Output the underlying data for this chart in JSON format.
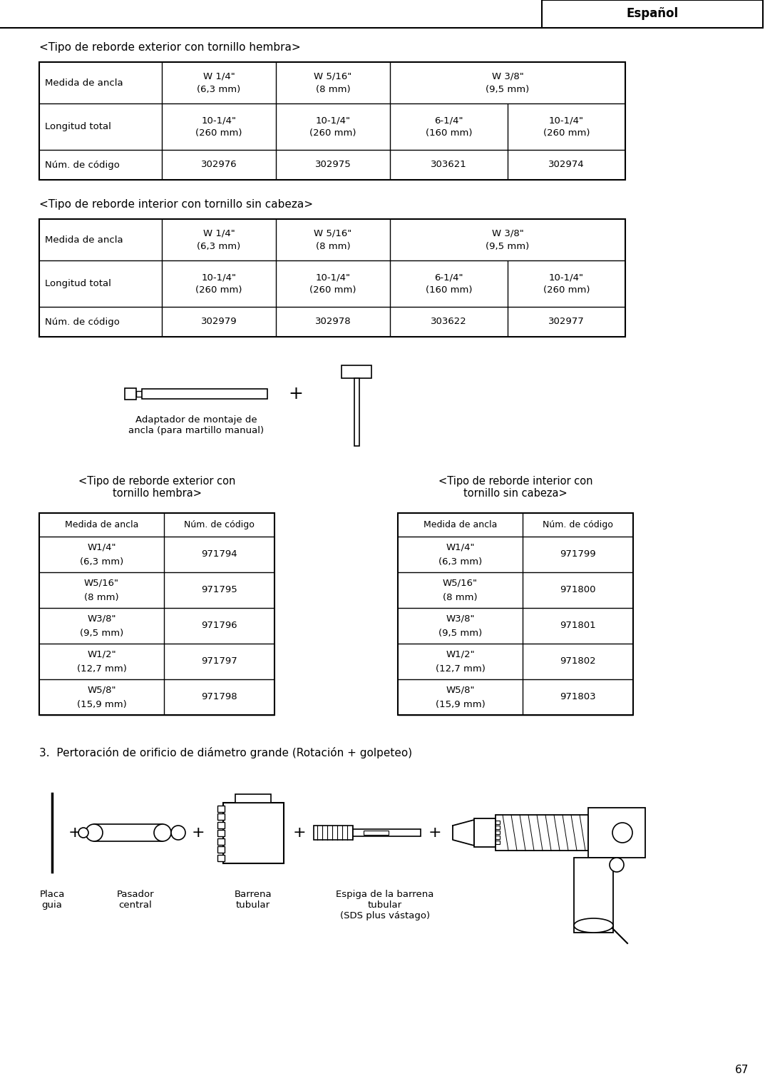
{
  "page_number": "67",
  "header_label": "Español",
  "bg_color": "#ffffff",
  "table1_title": "<Tipo de reborde exterior con tornillo hembra>",
  "table1": {
    "row2_cols": [
      "10-1/4\"\n(260 mm)",
      "10-1/4\"\n(260 mm)",
      "6-1/4\"\n(160 mm)",
      "10-1/4\"\n(260 mm)"
    ],
    "row3_cols": [
      "302976",
      "302975",
      "303621",
      "302974"
    ]
  },
  "table2_title": "<Tipo de reborde interior con tornillo sin cabeza>",
  "table2": {
    "row2_cols": [
      "10-1/4\"\n(260 mm)",
      "10-1/4\"\n(260 mm)",
      "6-1/4\"\n(160 mm)",
      "10-1/4\"\n(260 mm)"
    ],
    "row3_cols": [
      "302979",
      "302978",
      "303622",
      "302977"
    ]
  },
  "adapter_label": "Adaptador de montaje de\nancla (para martillo manual)",
  "table3_title": "<Tipo de reborde exterior con\ntornillo hembra>",
  "table3": {
    "header": [
      "Medida de ancla",
      "Núm. de código"
    ],
    "rows": [
      [
        "W1/4\"\n(6,3 mm)",
        "971794"
      ],
      [
        "W5/16\"\n(8 mm)",
        "971795"
      ],
      [
        "W3/8\"\n(9,5 mm)",
        "971796"
      ],
      [
        "W1/2\"\n(12,7 mm)",
        "971797"
      ],
      [
        "W5/8\"\n(15,9 mm)",
        "971798"
      ]
    ]
  },
  "table4_title": "<Tipo de reborde interior con\ntornillo sin cabeza>",
  "table4": {
    "header": [
      "Medida de ancla",
      "Núm. de código"
    ],
    "rows": [
      [
        "W1/4\"\n(6,3 mm)",
        "971799"
      ],
      [
        "W5/16\"\n(8 mm)",
        "971800"
      ],
      [
        "W3/8\"\n(9,5 mm)",
        "971801"
      ],
      [
        "W1/2\"\n(12,7 mm)",
        "971802"
      ],
      [
        "W5/8\"\n(15,9 mm)",
        "971803"
      ]
    ]
  },
  "section3_title": "3.  Pertoración de orificio de diámetro grande (Rotación + golpeteo)",
  "labels_bottom": [
    "Placa\nguia",
    "Pasador\ncentral",
    "Barrena\ntubular",
    "Espiga de la barrena\ntubular\n(SDS plus vástago)"
  ]
}
